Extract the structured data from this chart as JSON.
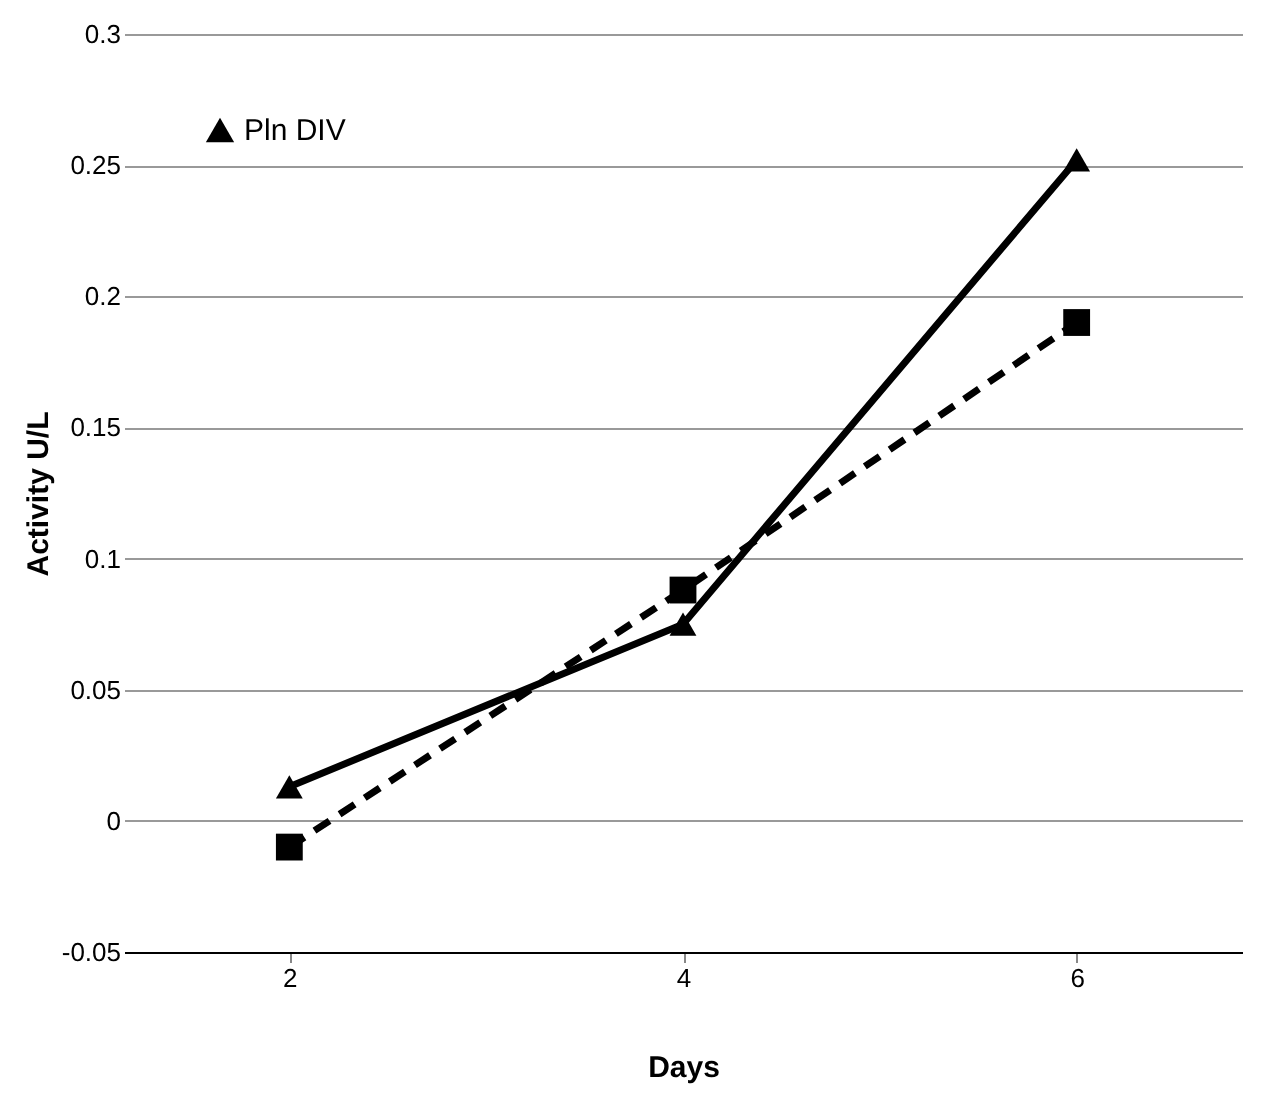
{
  "chart_data": {
    "type": "line",
    "xlabel": "Days",
    "ylabel": "Activity U/L",
    "categories": [
      "2",
      "4",
      "6"
    ],
    "ylim": [
      -0.05,
      0.3
    ],
    "yticks": [
      -0.05,
      0,
      0.05,
      0.1,
      0.15,
      0.2,
      0.25,
      0.3
    ],
    "grid": "y",
    "legend": "top left",
    "series": [
      {
        "color": "#000000",
        "values": [
          -0.01,
          0.088,
          0.19
        ],
        "marker": "square",
        "line_style": "dashed"
      },
      {
        "name": "Pln DIV",
        "color": "#000000",
        "values": [
          0.013,
          0.075,
          0.252
        ],
        "marker": "triangle",
        "line_style": "solid"
      }
    ]
  }
}
